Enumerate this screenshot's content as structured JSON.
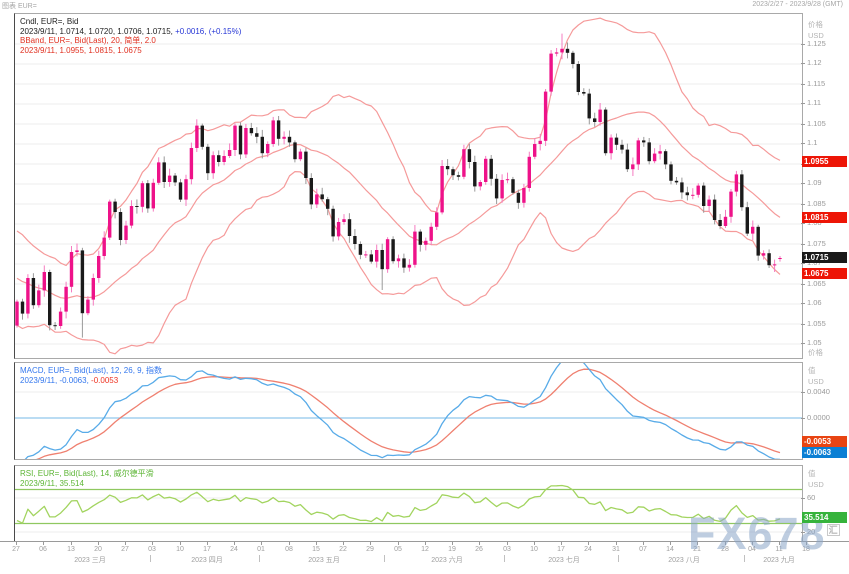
{
  "header": {
    "left": "图表 EUR=",
    "right": "2023/2/27 - 2023/9/28 (GMT)"
  },
  "watermark": {
    "text": "FX678",
    "logo": "汇"
  },
  "colors": {
    "up": "#ee1289",
    "down": "#1a1a1a",
    "up_wick": "#f57cc0",
    "down_wick": "#9a9a9a",
    "bband": "#f59a9a",
    "macd": "#58abe8",
    "signal": "#ef8070",
    "zero_line": "#90c8ec",
    "rsi": "#a2d45f",
    "rsi_level": "#8fc860",
    "grid": "#ececec",
    "axis_text": "#9a9a9a",
    "border": "#a9a9a9",
    "watermark": "#89a4c7"
  },
  "legends": {
    "main": [
      {
        "parts": [
          {
            "t": "Cndl, EUR=, Bid",
            "c": "#222222"
          }
        ]
      },
      {
        "parts": [
          {
            "t": "2023/9/11, 1.0714, 1.0720, 1.0706, 1.0715, ",
            "c": "#222222"
          },
          {
            "t": "+0.0016, (+0.15%)",
            "c": "#2737d6"
          }
        ]
      },
      {
        "parts": [
          {
            "t": "BBand, EUR=, Bid(Last),  20, 简单, 2.0",
            "c": "#e03020"
          }
        ]
      },
      {
        "parts": [
          {
            "t": "2023/9/11, 1.0955, 1.0815, 1.0675",
            "c": "#e03020"
          }
        ]
      }
    ],
    "macd": [
      {
        "parts": [
          {
            "t": "MACD, EUR=, Bid(Last), 12, 26, 9, 指数",
            "c": "#3377ee"
          }
        ]
      },
      {
        "parts": [
          {
            "t": "2023/9/11, -0.0063, ",
            "c": "#3377ee"
          },
          {
            "t": "-0.0053",
            "c": "#ee3322"
          }
        ]
      }
    ],
    "rsi": [
      {
        "parts": [
          {
            "t": "RSI, EUR=, Bid(Last), 14, 威尔德平滑",
            "c": "#5cb535"
          }
        ]
      },
      {
        "parts": [
          {
            "t": "2023/9/11, 35.514",
            "c": "#5cb535"
          }
        ]
      }
    ]
  },
  "axes": {
    "main": {
      "title": "价格",
      "unit": "USD",
      "bottom_label": "价格",
      "ticks": [
        {
          "v": 1.125,
          "label": "1.125"
        },
        {
          "v": 1.12,
          "label": "1.12"
        },
        {
          "v": 1.115,
          "label": "1.115"
        },
        {
          "v": 1.11,
          "label": "1.11"
        },
        {
          "v": 1.105,
          "label": "1.105"
        },
        {
          "v": 1.1,
          "label": "1.1"
        },
        {
          "v": 1.095,
          "label": "1.095"
        },
        {
          "v": 1.09,
          "label": "1.09"
        },
        {
          "v": 1.085,
          "label": "1.085"
        },
        {
          "v": 1.08,
          "label": "1.08"
        },
        {
          "v": 1.075,
          "label": "1.075"
        },
        {
          "v": 1.07,
          "label": "1.07"
        },
        {
          "v": 1.065,
          "label": "1.065"
        },
        {
          "v": 1.06,
          "label": "1.06"
        },
        {
          "v": 1.055,
          "label": "1.055"
        },
        {
          "v": 1.05,
          "label": "1.05"
        }
      ],
      "badges": [
        {
          "label": "1.0955",
          "v": 1.0955,
          "bg": "#ed1506"
        },
        {
          "label": "1.0815",
          "v": 1.0815,
          "bg": "#ed1506"
        },
        {
          "label": "1.0715",
          "v": 1.0715,
          "bg": "#1a1a1a"
        },
        {
          "label": "1.0675",
          "v": 1.0675,
          "bg": "#ed1506"
        }
      ]
    },
    "macd": {
      "title": "值",
      "unit": "USD",
      "ticks": [
        {
          "v": 0.004,
          "label": "0.0040"
        },
        {
          "v": 0,
          "label": "0.0000"
        }
      ],
      "badges": [
        {
          "label": "-0.0053",
          "v": -0.0053,
          "bg": "#e84412"
        },
        {
          "label": "-0.0063",
          "v": -0.0063,
          "bg": "#0b7fd4"
        }
      ]
    },
    "rsi": {
      "title": "值",
      "unit": "USD",
      "ticks": [
        {
          "v": 60,
          "label": "60"
        },
        {
          "v": 20,
          "label": "20"
        }
      ],
      "badges": [
        {
          "label": "35.514",
          "v": 35.514,
          "bg": "#36b33c"
        }
      ]
    }
  },
  "time_axis": {
    "ticks": [
      {
        "i": 0,
        "label": "27"
      },
      {
        "i": 5,
        "label": "06"
      },
      {
        "i": 10,
        "label": "13"
      },
      {
        "i": 15,
        "label": "20"
      },
      {
        "i": 20,
        "label": "27"
      },
      {
        "i": 25,
        "label": "03"
      },
      {
        "i": 30,
        "label": "10"
      },
      {
        "i": 35,
        "label": "17"
      },
      {
        "i": 40,
        "label": "24"
      },
      {
        "i": 45,
        "label": "01"
      },
      {
        "i": 50,
        "label": "08"
      },
      {
        "i": 55,
        "label": "15"
      },
      {
        "i": 60,
        "label": "22"
      },
      {
        "i": 65,
        "label": "29"
      },
      {
        "i": 70,
        "label": "05"
      },
      {
        "i": 75,
        "label": "12"
      },
      {
        "i": 80,
        "label": "19"
      },
      {
        "i": 85,
        "label": "26"
      },
      {
        "i": 90,
        "label": "03"
      },
      {
        "i": 95,
        "label": "10"
      },
      {
        "i": 100,
        "label": "17"
      },
      {
        "i": 105,
        "label": "24"
      },
      {
        "i": 110,
        "label": "31"
      },
      {
        "i": 115,
        "label": "07"
      },
      {
        "i": 120,
        "label": "14"
      },
      {
        "i": 125,
        "label": "21"
      },
      {
        "i": 130,
        "label": "28"
      },
      {
        "i": 135,
        "label": "04"
      },
      {
        "i": 140,
        "label": "11"
      },
      {
        "i": 145,
        "label": "18"
      }
    ],
    "months": [
      {
        "label": "2023 三月",
        "a": 2,
        "b": 25
      },
      {
        "label": "2023 四月",
        "a": 25,
        "b": 45
      },
      {
        "label": "2023 五月",
        "a": 45,
        "b": 68
      },
      {
        "label": "2023 六月",
        "a": 68,
        "b": 90
      },
      {
        "label": "2023 七月",
        "a": 90,
        "b": 111
      },
      {
        "label": "2023 八月",
        "a": 111,
        "b": 134
      },
      {
        "label": "2023 九月",
        "a": 134,
        "b": 146
      }
    ]
  },
  "chart_data": {
    "type": "candlestick",
    "symbol": "EUR=",
    "timeframe": "daily",
    "visible_range": "2023/2/27 - 2023/9/28 (GMT)",
    "last_candle": {
      "date": "2023/9/11",
      "open": 1.0714,
      "high": 1.072,
      "low": 1.0706,
      "close": 1.0715,
      "change": "+0.0016",
      "change_pct": "+0.15%"
    },
    "indicators": {
      "bband": {
        "period": 20,
        "method": "简单",
        "width": 2.0,
        "last": {
          "upper": 1.0955,
          "middle": 1.0815,
          "lower": 1.0675
        }
      },
      "macd": {
        "fast": 12,
        "slow": 26,
        "signal_period": 9,
        "method": "指数",
        "last": {
          "macd": -0.0063,
          "signal": -0.0053
        },
        "yticks": [
          0.004,
          0
        ]
      },
      "rsi": {
        "period": 14,
        "method": "威尔德平滑",
        "last": 35.514,
        "levels": [
          70,
          30
        ],
        "yticks": [
          60,
          20
        ]
      }
    },
    "ylim": [
      1.047,
      1.132
    ],
    "yticks": [
      1.125,
      1.12,
      1.115,
      1.11,
      1.105,
      1.1,
      1.095,
      1.09,
      1.085,
      1.08,
      1.075,
      1.07,
      1.065,
      1.06,
      1.055,
      1.05
    ],
    "dates": [
      "2/27",
      "2/28",
      "3/1",
      "3/2",
      "3/3",
      "3/6",
      "3/7",
      "3/8",
      "3/9",
      "3/10",
      "3/13",
      "3/14",
      "3/15",
      "3/16",
      "3/17",
      "3/20",
      "3/21",
      "3/22",
      "3/23",
      "3/24",
      "3/27",
      "3/28",
      "3/29",
      "3/30",
      "3/31",
      "4/3",
      "4/4",
      "4/5",
      "4/6",
      "4/7",
      "4/10",
      "4/11",
      "4/12",
      "4/13",
      "4/14",
      "4/17",
      "4/18",
      "4/19",
      "4/20",
      "4/21",
      "4/24",
      "4/25",
      "4/26",
      "4/27",
      "4/28",
      "5/1",
      "5/2",
      "5/3",
      "5/4",
      "5/5",
      "5/8",
      "5/9",
      "5/10",
      "5/11",
      "5/12",
      "5/15",
      "5/16",
      "5/17",
      "5/18",
      "5/19",
      "5/22",
      "5/23",
      "5/24",
      "5/25",
      "5/26",
      "5/29",
      "5/30",
      "5/31",
      "6/1",
      "6/2",
      "6/5",
      "6/6",
      "6/7",
      "6/8",
      "6/9",
      "6/12",
      "6/13",
      "6/14",
      "6/15",
      "6/16",
      "6/19",
      "6/20",
      "6/21",
      "6/22",
      "6/23",
      "6/26",
      "6/27",
      "6/28",
      "6/29",
      "6/30",
      "7/3",
      "7/4",
      "7/5",
      "7/6",
      "7/7",
      "7/10",
      "7/11",
      "7/12",
      "7/13",
      "7/14",
      "7/17",
      "7/18",
      "7/19",
      "7/20",
      "7/21",
      "7/24",
      "7/25",
      "7/26",
      "7/27",
      "7/28",
      "7/31",
      "8/1",
      "8/2",
      "8/3",
      "8/4",
      "8/7",
      "8/8",
      "8/9",
      "8/10",
      "8/11",
      "8/14",
      "8/15",
      "8/16",
      "8/17",
      "8/18",
      "8/21",
      "8/22",
      "8/23",
      "8/24",
      "8/25",
      "8/28",
      "8/29",
      "8/30",
      "8/31",
      "9/1",
      "9/4",
      "9/5",
      "9/6",
      "9/7",
      "9/8",
      "9/11"
    ],
    "closes": [
      1.0606,
      1.0576,
      1.0665,
      1.0597,
      1.0634,
      1.068,
      1.0547,
      1.0545,
      1.0581,
      1.0643,
      1.073,
      1.0734,
      1.0577,
      1.0611,
      1.0665,
      1.072,
      1.0766,
      1.0856,
      1.083,
      1.076,
      1.0796,
      1.0845,
      1.0843,
      1.0902,
      1.0839,
      1.0903,
      1.0954,
      1.0905,
      1.0921,
      1.0904,
      1.0861,
      1.0912,
      1.099,
      1.1046,
      1.0993,
      1.0927,
      1.0972,
      1.0955,
      1.097,
      1.0985,
      1.1046,
      1.0974,
      1.104,
      1.1027,
      1.1018,
      1.0977,
      1.1,
      1.1059,
      1.1013,
      1.1018,
      1.1004,
      1.0962,
      1.0981,
      1.0915,
      1.0849,
      1.0874,
      1.0862,
      1.0838,
      1.0769,
      1.0805,
      1.0812,
      1.077,
      1.075,
      1.0723,
      1.0724,
      1.0706,
      1.0735,
      1.0687,
      1.0762,
      1.0707,
      1.0714,
      1.0691,
      1.0698,
      1.0781,
      1.0748,
      1.0758,
      1.0793,
      1.0829,
      1.0945,
      1.0937,
      1.0922,
      1.0918,
      1.0987,
      1.0955,
      1.0894,
      1.0905,
      1.0963,
      1.0913,
      1.0864,
      1.091,
      1.0912,
      1.0878,
      1.0853,
      1.089,
      1.0968,
      1.1,
      1.1008,
      1.1131,
      1.1226,
      1.1229,
      1.1238,
      1.1228,
      1.12,
      1.113,
      1.1126,
      1.1064,
      1.1055,
      1.1086,
      1.0977,
      1.1016,
      1.0998,
      1.0986,
      1.0937,
      1.0949,
      1.1009,
      1.1004,
      1.0957,
      1.0976,
      1.0982,
      1.0949,
      1.0908,
      1.0904,
      1.0879,
      1.0872,
      1.0873,
      1.0896,
      1.0845,
      1.0861,
      1.081,
      1.0795,
      1.0818,
      1.0881,
      1.0924,
      1.0842,
      1.0776,
      1.0793,
      1.0721,
      1.0727,
      1.0697,
      1.0699,
      1.0715
    ],
    "warmup_closes": [
      1.09,
      1.091,
      1.089,
      1.087,
      1.088,
      1.086,
      1.084,
      1.085,
      1.083,
      1.081,
      1.082,
      1.08,
      1.078,
      1.079,
      1.077,
      1.075,
      1.076,
      1.074,
      1.072,
      1.073,
      1.071,
      1.069,
      1.07,
      1.068,
      1.066,
      1.067,
      1.065,
      1.063,
      1.064,
      1.062,
      1.06,
      1.061,
      1.058,
      1.0546
    ],
    "overrides": {
      "high": {
        "100": 1.1276
      },
      "low": {
        "12": 1.0516,
        "67": 1.0635
      }
    }
  }
}
